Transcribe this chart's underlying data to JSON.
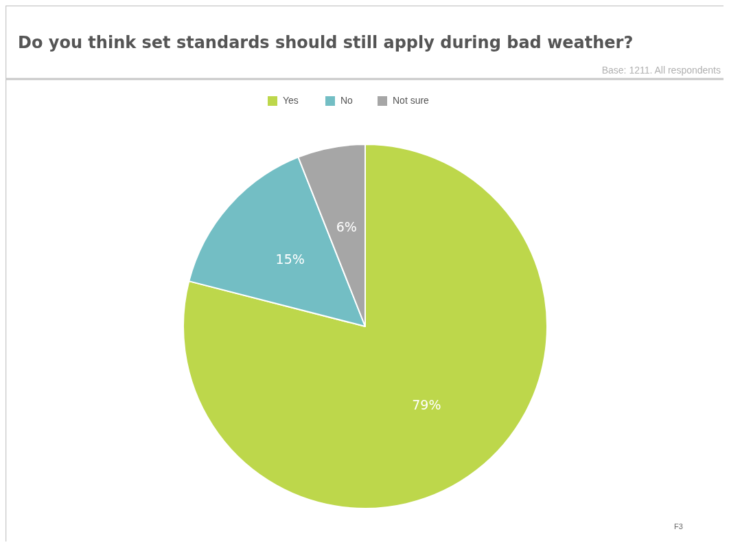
{
  "chart_data": {
    "type": "pie",
    "title": "Do you think set standards should still apply during bad weather?",
    "subtitle": "Base: 1211. All respondents",
    "annotations": [
      "F3"
    ],
    "categories": [
      "Yes",
      "No",
      "Not sure"
    ],
    "values": [
      79,
      15,
      6
    ],
    "colors": [
      "#bdd74b",
      "#73bec4",
      "#a6a6a6"
    ],
    "value_labels": [
      "79%",
      "15%",
      "6%"
    ],
    "legend": "top"
  }
}
